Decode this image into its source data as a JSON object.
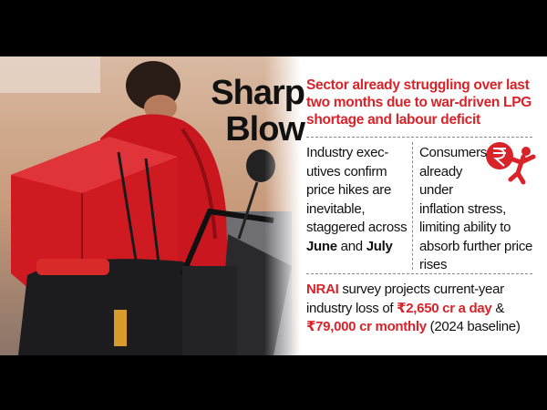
{
  "headline": {
    "title": "Sharp Blow",
    "subtitle": "Sector already struggling over last two months due to war-driven LPG shortage and labour deficit"
  },
  "columns": [
    {
      "segments": [
        "Industry exec­utives confirm price hikes are inevitable, staggered across ",
        "June",
        " and ",
        "July"
      ]
    },
    {
      "segments": [
        "Consumers already under inflation stress, limiting ability to absorb further price rises"
      ]
    }
  ],
  "footer": {
    "segments": [
      "NRAI",
      " survey projects current-year industry loss of ",
      "₹2,650 cr a day",
      " & ",
      "₹79,000 cr monthly",
      " (2024 baseline)"
    ]
  }
}
